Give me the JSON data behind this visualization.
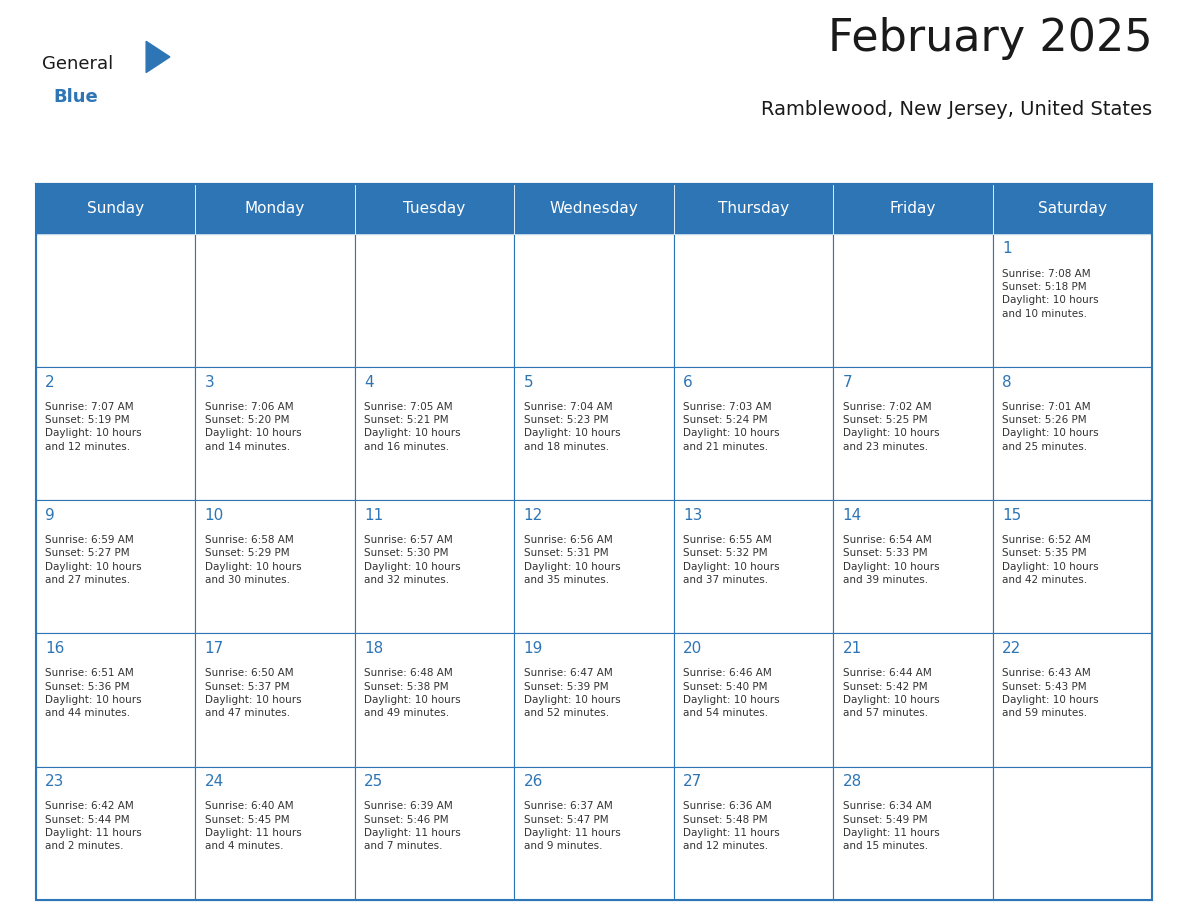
{
  "title": "February 2025",
  "subtitle": "Ramblewood, New Jersey, United States",
  "header_color": "#2E75B6",
  "header_text_color": "#FFFFFF",
  "border_color": "#2E75B6",
  "days_of_week": [
    "Sunday",
    "Monday",
    "Tuesday",
    "Wednesday",
    "Thursday",
    "Friday",
    "Saturday"
  ],
  "title_color": "#1A1A1A",
  "subtitle_color": "#1A1A1A",
  "day_number_color": "#2E75B6",
  "cell_text_color": "#333333",
  "weeks": [
    [
      {
        "day": null,
        "info": null
      },
      {
        "day": null,
        "info": null
      },
      {
        "day": null,
        "info": null
      },
      {
        "day": null,
        "info": null
      },
      {
        "day": null,
        "info": null
      },
      {
        "day": null,
        "info": null
      },
      {
        "day": 1,
        "info": "Sunrise: 7:08 AM\nSunset: 5:18 PM\nDaylight: 10 hours\nand 10 minutes."
      }
    ],
    [
      {
        "day": 2,
        "info": "Sunrise: 7:07 AM\nSunset: 5:19 PM\nDaylight: 10 hours\nand 12 minutes."
      },
      {
        "day": 3,
        "info": "Sunrise: 7:06 AM\nSunset: 5:20 PM\nDaylight: 10 hours\nand 14 minutes."
      },
      {
        "day": 4,
        "info": "Sunrise: 7:05 AM\nSunset: 5:21 PM\nDaylight: 10 hours\nand 16 minutes."
      },
      {
        "day": 5,
        "info": "Sunrise: 7:04 AM\nSunset: 5:23 PM\nDaylight: 10 hours\nand 18 minutes."
      },
      {
        "day": 6,
        "info": "Sunrise: 7:03 AM\nSunset: 5:24 PM\nDaylight: 10 hours\nand 21 minutes."
      },
      {
        "day": 7,
        "info": "Sunrise: 7:02 AM\nSunset: 5:25 PM\nDaylight: 10 hours\nand 23 minutes."
      },
      {
        "day": 8,
        "info": "Sunrise: 7:01 AM\nSunset: 5:26 PM\nDaylight: 10 hours\nand 25 minutes."
      }
    ],
    [
      {
        "day": 9,
        "info": "Sunrise: 6:59 AM\nSunset: 5:27 PM\nDaylight: 10 hours\nand 27 minutes."
      },
      {
        "day": 10,
        "info": "Sunrise: 6:58 AM\nSunset: 5:29 PM\nDaylight: 10 hours\nand 30 minutes."
      },
      {
        "day": 11,
        "info": "Sunrise: 6:57 AM\nSunset: 5:30 PM\nDaylight: 10 hours\nand 32 minutes."
      },
      {
        "day": 12,
        "info": "Sunrise: 6:56 AM\nSunset: 5:31 PM\nDaylight: 10 hours\nand 35 minutes."
      },
      {
        "day": 13,
        "info": "Sunrise: 6:55 AM\nSunset: 5:32 PM\nDaylight: 10 hours\nand 37 minutes."
      },
      {
        "day": 14,
        "info": "Sunrise: 6:54 AM\nSunset: 5:33 PM\nDaylight: 10 hours\nand 39 minutes."
      },
      {
        "day": 15,
        "info": "Sunrise: 6:52 AM\nSunset: 5:35 PM\nDaylight: 10 hours\nand 42 minutes."
      }
    ],
    [
      {
        "day": 16,
        "info": "Sunrise: 6:51 AM\nSunset: 5:36 PM\nDaylight: 10 hours\nand 44 minutes."
      },
      {
        "day": 17,
        "info": "Sunrise: 6:50 AM\nSunset: 5:37 PM\nDaylight: 10 hours\nand 47 minutes."
      },
      {
        "day": 18,
        "info": "Sunrise: 6:48 AM\nSunset: 5:38 PM\nDaylight: 10 hours\nand 49 minutes."
      },
      {
        "day": 19,
        "info": "Sunrise: 6:47 AM\nSunset: 5:39 PM\nDaylight: 10 hours\nand 52 minutes."
      },
      {
        "day": 20,
        "info": "Sunrise: 6:46 AM\nSunset: 5:40 PM\nDaylight: 10 hours\nand 54 minutes."
      },
      {
        "day": 21,
        "info": "Sunrise: 6:44 AM\nSunset: 5:42 PM\nDaylight: 10 hours\nand 57 minutes."
      },
      {
        "day": 22,
        "info": "Sunrise: 6:43 AM\nSunset: 5:43 PM\nDaylight: 10 hours\nand 59 minutes."
      }
    ],
    [
      {
        "day": 23,
        "info": "Sunrise: 6:42 AM\nSunset: 5:44 PM\nDaylight: 11 hours\nand 2 minutes."
      },
      {
        "day": 24,
        "info": "Sunrise: 6:40 AM\nSunset: 5:45 PM\nDaylight: 11 hours\nand 4 minutes."
      },
      {
        "day": 25,
        "info": "Sunrise: 6:39 AM\nSunset: 5:46 PM\nDaylight: 11 hours\nand 7 minutes."
      },
      {
        "day": 26,
        "info": "Sunrise: 6:37 AM\nSunset: 5:47 PM\nDaylight: 11 hours\nand 9 minutes."
      },
      {
        "day": 27,
        "info": "Sunrise: 6:36 AM\nSunset: 5:48 PM\nDaylight: 11 hours\nand 12 minutes."
      },
      {
        "day": 28,
        "info": "Sunrise: 6:34 AM\nSunset: 5:49 PM\nDaylight: 11 hours\nand 15 minutes."
      },
      {
        "day": null,
        "info": null
      }
    ]
  ],
  "logo_text_general": "General",
  "logo_text_blue": "Blue",
  "logo_color_general": "#1A1A1A",
  "logo_color_blue": "#2E75B6",
  "logo_triangle_color": "#2E75B6"
}
